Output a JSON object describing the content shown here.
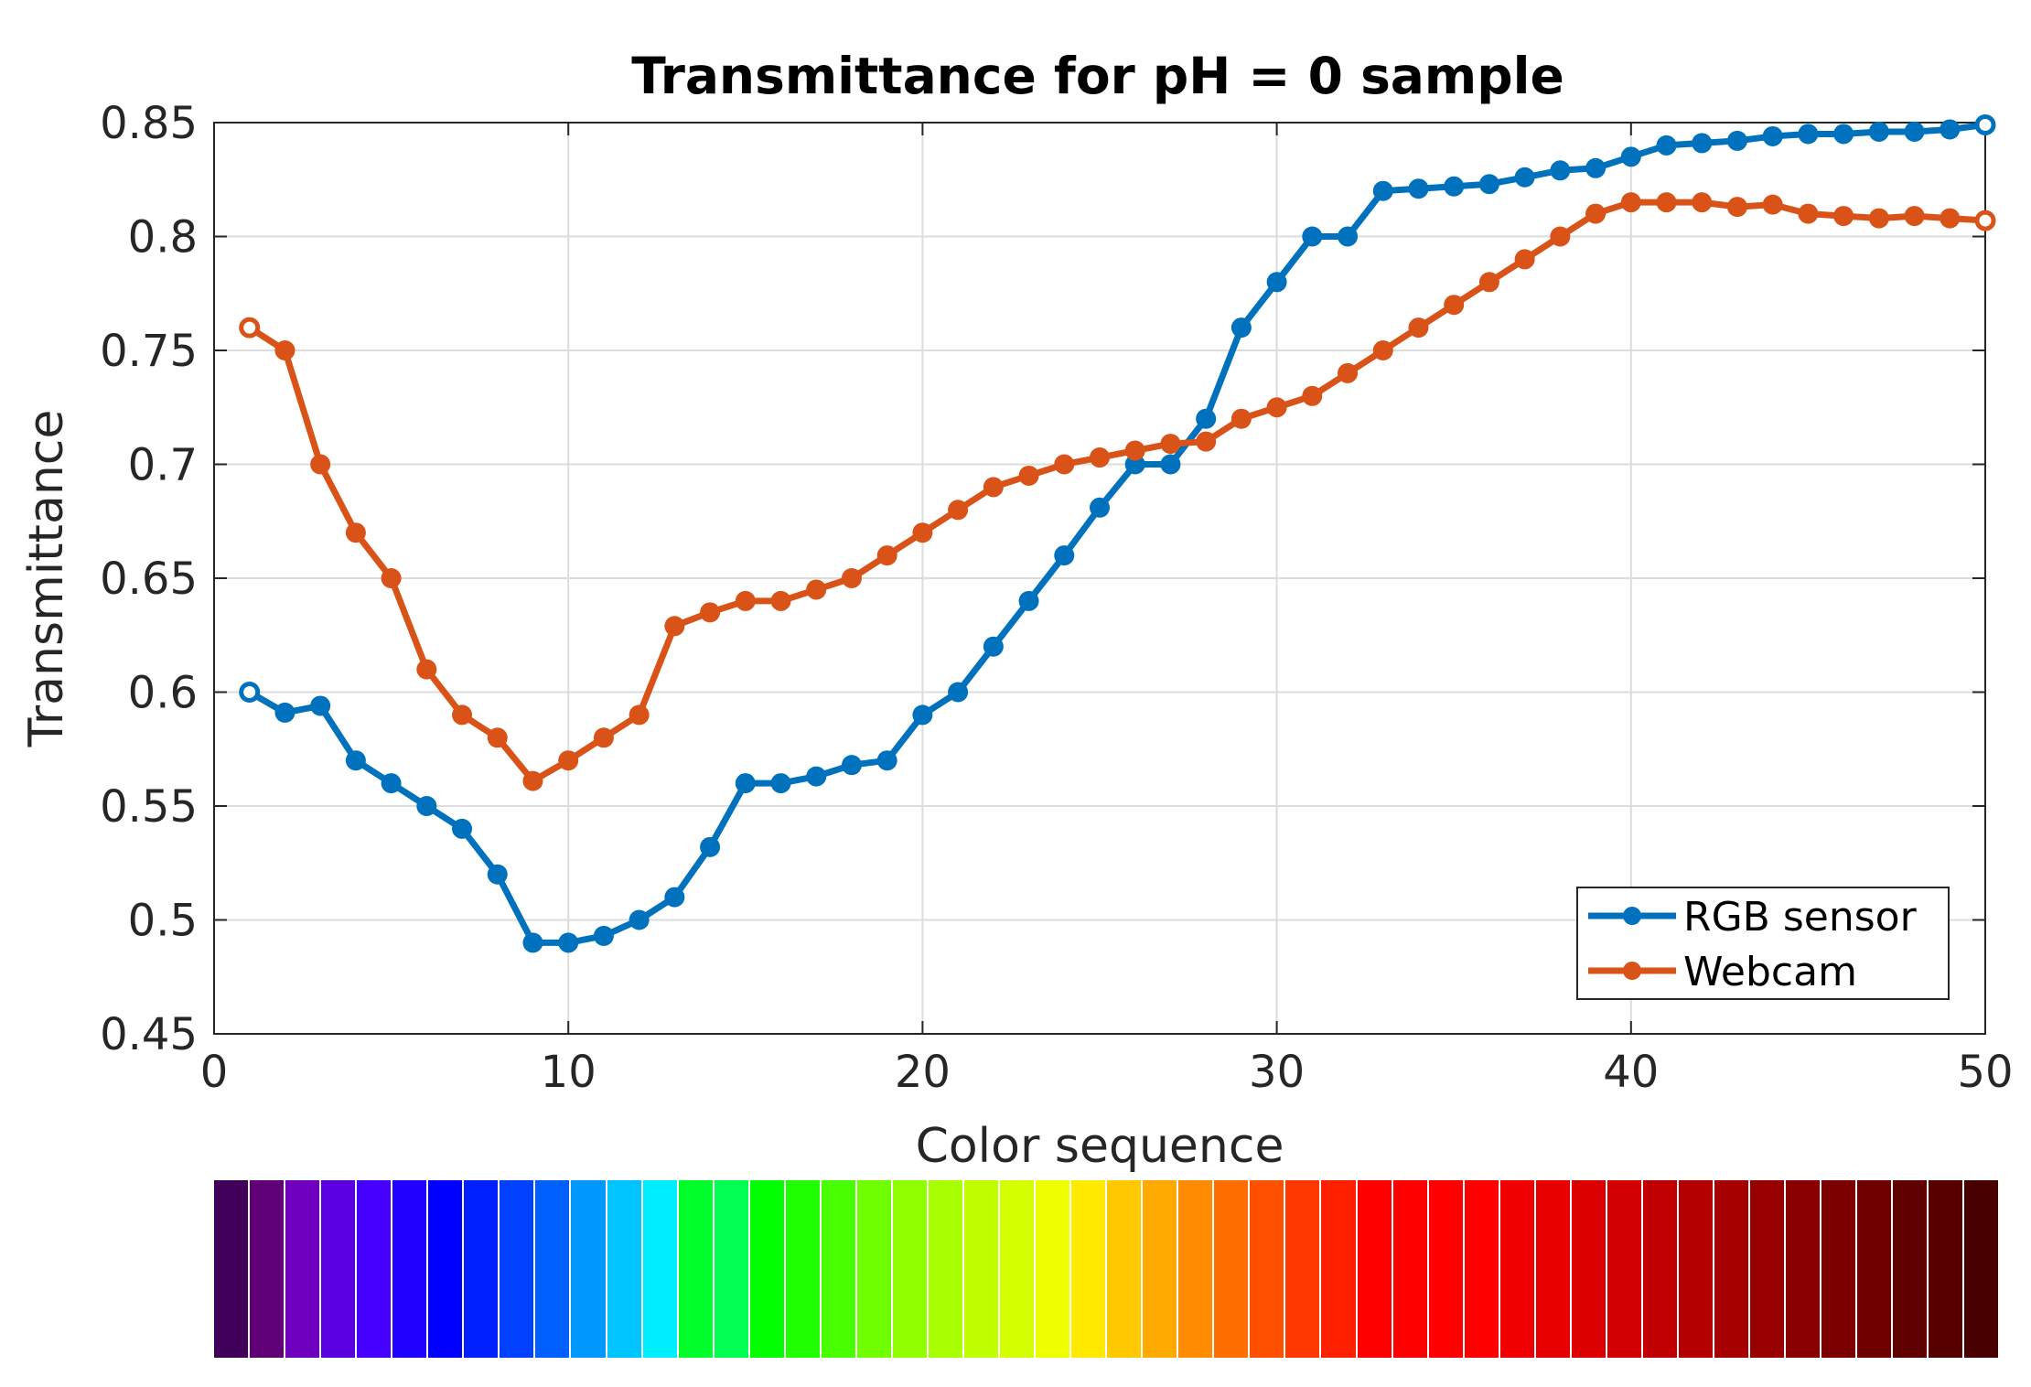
{
  "chart_data": {
    "type": "line",
    "title": "Transmittance for pH = 0 sample",
    "xlabel": "Color sequence",
    "ylabel": "Transmittance",
    "xlim": [
      0,
      50
    ],
    "ylim": [
      0.45,
      0.85
    ],
    "xticks": [
      0,
      10,
      20,
      30,
      40,
      50
    ],
    "xtick_labels": [
      "0",
      "10",
      "20",
      "30",
      "40",
      "50"
    ],
    "yticks": [
      0.45,
      0.5,
      0.55,
      0.6,
      0.65,
      0.7,
      0.75,
      0.8,
      0.85
    ],
    "ytick_labels": [
      "0.45",
      "0.5",
      "0.55",
      "0.6",
      "0.65",
      "0.7",
      "0.75",
      "0.8",
      "0.85"
    ],
    "grid": true,
    "legend_position": "bottom-right",
    "x": [
      1,
      2,
      3,
      4,
      5,
      6,
      7,
      8,
      9,
      10,
      11,
      12,
      13,
      14,
      15,
      16,
      17,
      18,
      19,
      20,
      21,
      22,
      23,
      24,
      25,
      26,
      27,
      28,
      29,
      30,
      31,
      32,
      33,
      34,
      35,
      36,
      37,
      38,
      39,
      40,
      41,
      42,
      43,
      44,
      45,
      46,
      47,
      48,
      49,
      50
    ],
    "series": [
      {
        "name": "RGB sensor",
        "color": "#0072BD",
        "values": [
          0.6,
          0.591,
          0.594,
          0.57,
          0.56,
          0.55,
          0.54,
          0.52,
          0.49,
          0.49,
          0.493,
          0.5,
          0.51,
          0.532,
          0.56,
          0.56,
          0.563,
          0.568,
          0.57,
          0.59,
          0.6,
          0.62,
          0.64,
          0.66,
          0.681,
          0.7,
          0.7,
          0.72,
          0.76,
          0.78,
          0.8,
          0.8,
          0.82,
          0.821,
          0.822,
          0.823,
          0.826,
          0.829,
          0.83,
          0.835,
          0.84,
          0.841,
          0.842,
          0.844,
          0.845,
          0.845,
          0.846,
          0.846,
          0.847,
          0.849
        ]
      },
      {
        "name": "Webcam",
        "color": "#D95319",
        "values": [
          0.76,
          0.75,
          0.7,
          0.67,
          0.65,
          0.61,
          0.59,
          0.58,
          0.561,
          0.57,
          0.58,
          0.59,
          0.629,
          0.635,
          0.64,
          0.64,
          0.645,
          0.65,
          0.66,
          0.67,
          0.68,
          0.69,
          0.695,
          0.7,
          0.703,
          0.706,
          0.709,
          0.71,
          0.72,
          0.725,
          0.73,
          0.74,
          0.75,
          0.76,
          0.77,
          0.78,
          0.79,
          0.8,
          0.81,
          0.815,
          0.815,
          0.815,
          0.813,
          0.814,
          0.81,
          0.809,
          0.808,
          0.809,
          0.808,
          0.807
        ]
      }
    ]
  },
  "color_sequence": {
    "colors": [
      "#40005a",
      "#5f0077",
      "#7000c0",
      "#5a00e0",
      "#4600ff",
      "#2000ff",
      "#0000ff",
      "#0020ff",
      "#0040ff",
      "#0060ff",
      "#0098ff",
      "#00c4ff",
      "#00ecff",
      "#00ff2a",
      "#00ff50",
      "#00ff00",
      "#20ff00",
      "#48ff00",
      "#70ff00",
      "#90ff00",
      "#a8ff00",
      "#c0ff00",
      "#d4ff00",
      "#eeff00",
      "#ffea00",
      "#ffc800",
      "#ffaa00",
      "#ff8c00",
      "#ff6e00",
      "#ff5000",
      "#ff3800",
      "#ff2000",
      "#ff0000",
      "#ff0000",
      "#ff0000",
      "#ff0000",
      "#f00000",
      "#e60000",
      "#dc0000",
      "#d20000",
      "#c00000",
      "#b40000",
      "#a60000",
      "#980000",
      "#8a0000",
      "#7c0000",
      "#6e0000",
      "#600000",
      "#560000",
      "#480000"
    ]
  }
}
